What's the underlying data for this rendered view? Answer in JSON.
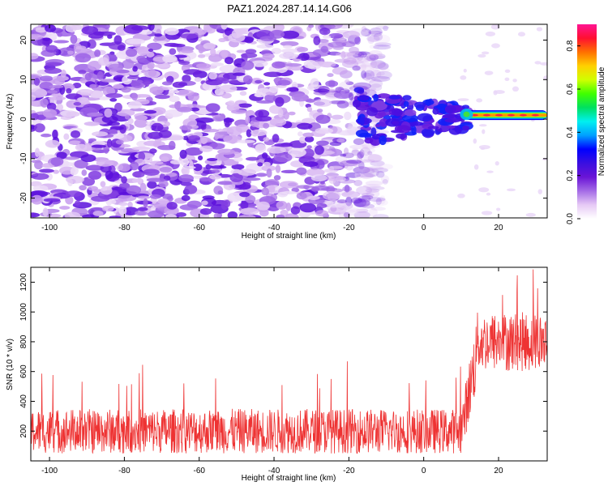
{
  "title": "PAZ1.2024.287.14.14.G06",
  "chart_data": [
    {
      "type": "heatmap",
      "xlabel": "Height of straight line (km)",
      "ylabel": "Frequency (Hz)",
      "xlim": [
        -105,
        33
      ],
      "ylim": [
        -25,
        24
      ],
      "xticks": [
        -100,
        -80,
        -60,
        -40,
        -20,
        0,
        20
      ],
      "yticks": [
        -20,
        -10,
        0,
        10,
        20
      ],
      "colorbar": {
        "label": "Normalized spectral amplitude",
        "range": [
          0.0,
          0.9
        ],
        "ticks": [
          0.0,
          0.2,
          0.4,
          0.6,
          0.8
        ],
        "colors": [
          "#ffffff",
          "#e6c9f5",
          "#a46be6",
          "#6a14d6",
          "#3a0fe0",
          "#0000ff",
          "#00a0ff",
          "#00f0f0",
          "#00e060",
          "#40ff00",
          "#d0ff00",
          "#ffd000",
          "#ff7000",
          "#ff1030",
          "#ff1493"
        ]
      },
      "features": {
        "noise_region_x": [
          -105,
          -15
        ],
        "enhanced_energy_region_x": [
          -18,
          12
        ],
        "signal_start_x": 11,
        "signal_frequency_hz": 1
      }
    },
    {
      "type": "line",
      "xlabel": "Height of straight line (km)",
      "ylabel": "SNR (10 * v/v)",
      "xlim": [
        -105,
        33
      ],
      "ylim": [
        0,
        1300
      ],
      "xticks": [
        -100,
        -80,
        -60,
        -40,
        -20,
        0,
        20
      ],
      "yticks": [
        200,
        400,
        600,
        800,
        1000,
        1200
      ],
      "series": [
        {
          "color": "#ee3333",
          "segments": [
            {
              "x_range": [
                -105,
                10
              ],
              "baseline": 200,
              "typical_max": 350,
              "occasional_peak": 670
            },
            {
              "x_range": [
                10,
                14
              ],
              "baseline_from": 200,
              "baseline_to": 700
            },
            {
              "x_range": [
                14,
                33
              ],
              "baseline": 800,
              "typical_max": 1000,
              "occasional_peak": 1300
            }
          ]
        }
      ]
    }
  ]
}
